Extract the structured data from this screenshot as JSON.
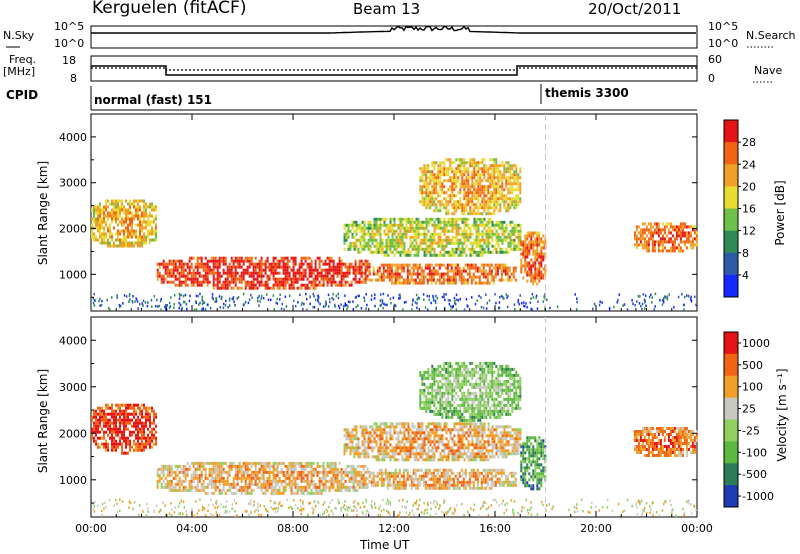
{
  "header": {
    "station": "Kerguelen (fitACF)",
    "beam": "Beam 13",
    "date": "20/Oct/2011"
  },
  "top_panel": {
    "left_label": "N.Sky",
    "right_label": "N.Search",
    "left_ticks": [
      "10^5",
      "10^0"
    ],
    "right_ticks": [
      "10^5",
      "10^0"
    ]
  },
  "freq_panel": {
    "left_label_1": "Freq.",
    "left_label_2": "[MHz]",
    "left_ticks": [
      "18",
      "8"
    ],
    "right_label": "Nave",
    "right_ticks": [
      "60",
      "0"
    ]
  },
  "cpid": {
    "label": "CPID",
    "mode_1": "normal (fast) 151",
    "mode_2": "themis 3300"
  },
  "x_axis": {
    "ticks": [
      "00:00",
      "04:00",
      "08:00",
      "12:00",
      "16:00",
      "20:00",
      "00:00"
    ],
    "label": "Time UT"
  },
  "colors": {
    "missing": "#ffffff",
    "bg": "#ffffff"
  },
  "chart_data": [
    {
      "type": "heatmap",
      "ylabel": "Slant Range [km]",
      "y_ticks": [
        "1000",
        "2000",
        "3000",
        "4000"
      ],
      "ylim": [
        200,
        4500
      ],
      "xlim_hours": [
        0,
        24
      ],
      "colorbar": {
        "label": "Power [dB]",
        "ticks": [
          "4",
          "8",
          "12",
          "16",
          "20",
          "24",
          "28"
        ],
        "colors": [
          "#1428ff",
          "#2f5aa8",
          "#2e8b57",
          "#6fc048",
          "#e6dc32",
          "#f0a028",
          "#f06414",
          "#e61414"
        ]
      },
      "echo_regions": [
        {
          "t": [
            0.0,
            2.6
          ],
          "r": [
            1600,
            2700
          ],
          "level": 4
        },
        {
          "t": [
            2.6,
            11.0
          ],
          "r": [
            700,
            1450
          ],
          "level": 6
        },
        {
          "t": [
            11.0,
            16.8
          ],
          "r": [
            800,
            1300
          ],
          "level": 5
        },
        {
          "t": [
            10.0,
            17.0
          ],
          "r": [
            1400,
            2300
          ],
          "level": 3
        },
        {
          "t": [
            13.0,
            17.0
          ],
          "r": [
            2300,
            3600
          ],
          "level": 4
        },
        {
          "t": [
            17.0,
            18.0
          ],
          "r": [
            800,
            2000
          ],
          "level": 5
        },
        {
          "t": [
            21.5,
            24.0
          ],
          "r": [
            1500,
            2200
          ],
          "level": 5
        }
      ]
    },
    {
      "type": "heatmap",
      "ylabel": "Slant Range [km]",
      "y_ticks": [
        "1000",
        "2000",
        "3000",
        "4000"
      ],
      "ylim": [
        200,
        4500
      ],
      "xlim_hours": [
        0,
        24
      ],
      "colorbar": {
        "label": "Velocity [m s⁻¹]",
        "ticks": [
          "1000",
          "500",
          "100",
          "25",
          "-25",
          "-100",
          "-500",
          "-1000"
        ],
        "colors": [
          "#1e3cb4",
          "#2e7b57",
          "#5cb840",
          "#8fd060",
          "#c8c8c0",
          "#f0a028",
          "#f06414",
          "#e61414"
        ]
      },
      "echo_regions": [
        {
          "t": [
            0.0,
            2.6
          ],
          "r": [
            1600,
            2700
          ],
          "level": 6
        },
        {
          "t": [
            2.6,
            11.0
          ],
          "r": [
            700,
            1450
          ],
          "level": 4
        },
        {
          "t": [
            11.0,
            16.8
          ],
          "r": [
            800,
            1300
          ],
          "level": 4
        },
        {
          "t": [
            10.0,
            17.0
          ],
          "r": [
            1400,
            2300
          ],
          "level": 4
        },
        {
          "t": [
            13.0,
            17.0
          ],
          "r": [
            2300,
            3600
          ],
          "level": 2
        },
        {
          "t": [
            17.0,
            18.0
          ],
          "r": [
            800,
            2000
          ],
          "level": 1
        },
        {
          "t": [
            21.5,
            24.0
          ],
          "r": [
            1500,
            2200
          ],
          "level": 5
        }
      ]
    }
  ]
}
